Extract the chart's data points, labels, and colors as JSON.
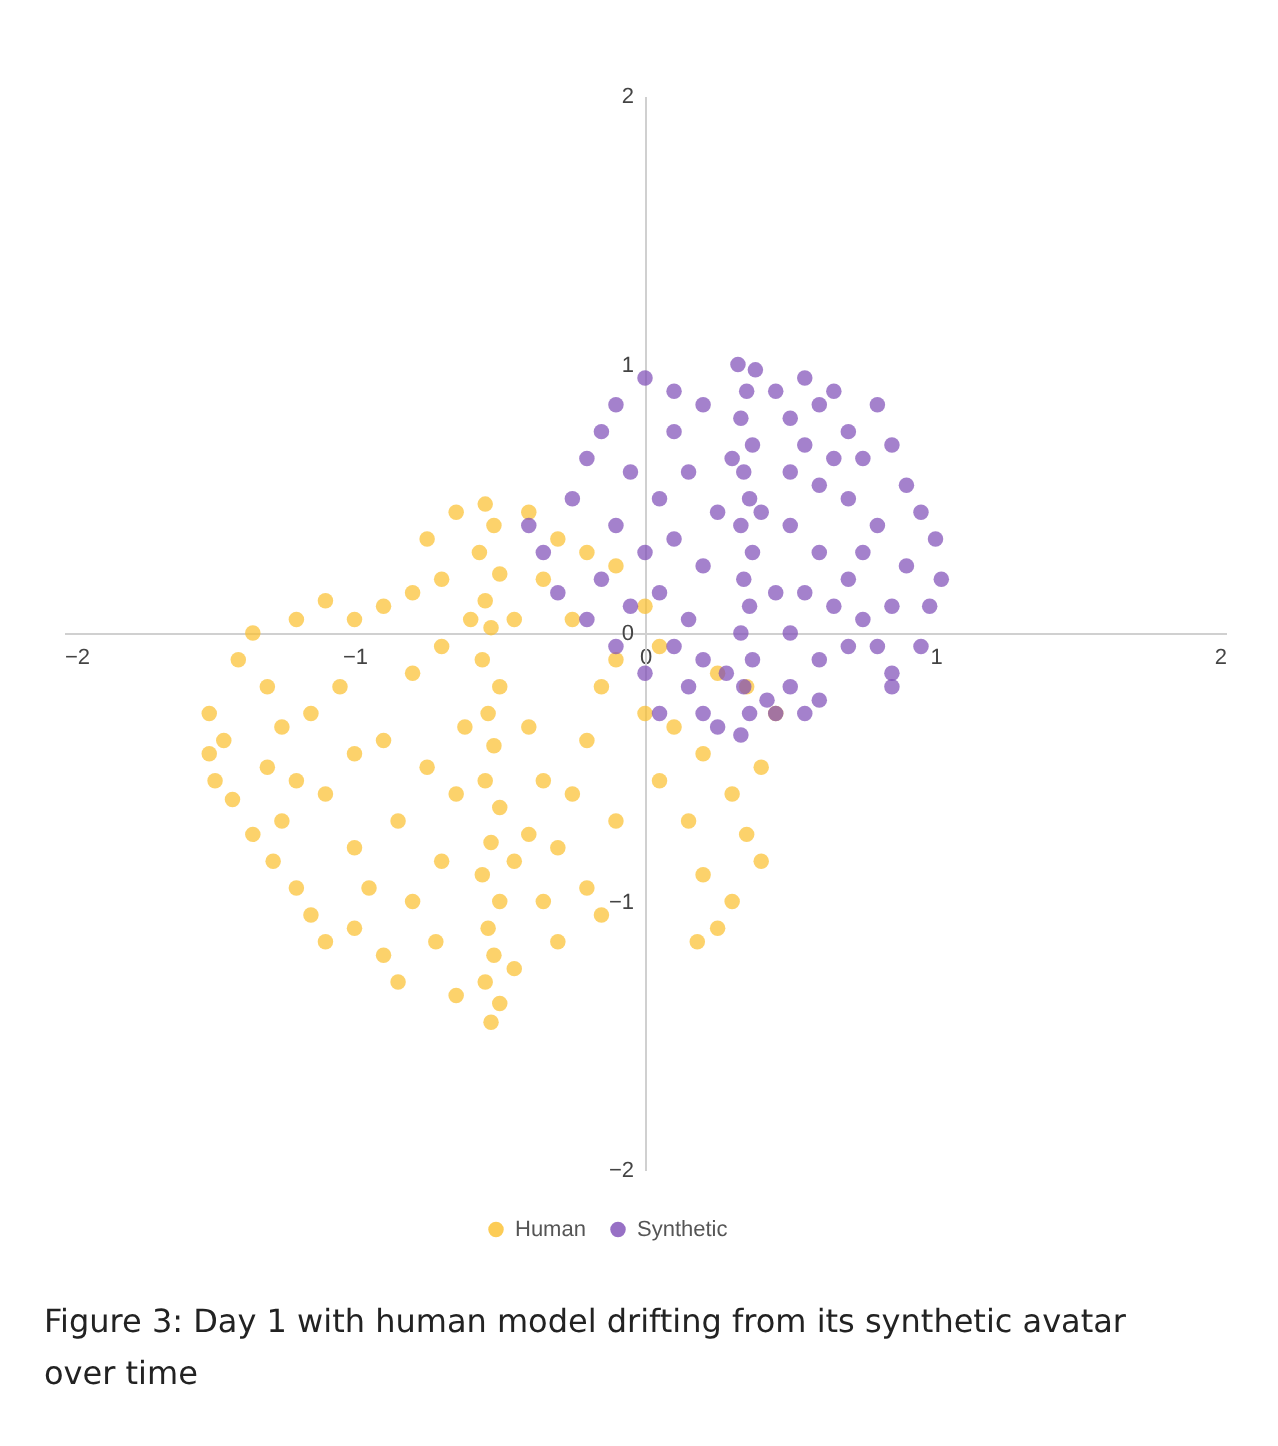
{
  "chart_data": {
    "type": "scatter",
    "xlim": [
      -2,
      2
    ],
    "ylim": [
      -2,
      2
    ],
    "xticks": [
      -2,
      -1,
      0,
      1,
      2
    ],
    "yticks": [
      -2,
      -1,
      0,
      1,
      2
    ],
    "grid": false,
    "legend": "bottom",
    "marker": "circle",
    "annotations": [
      "Figure 3: Day 1 with human model drifting from its synthetic avatar over time"
    ],
    "series": [
      {
        "name": "Human",
        "color": "#fbbf2c",
        "x": [
          -0.55,
          -0.52,
          -0.57,
          -0.5,
          -0.55,
          -0.53,
          -0.56,
          -0.5,
          -0.54,
          -0.52,
          -0.55,
          -0.5,
          -0.53,
          -0.56,
          -0.5,
          -0.54,
          -0.52,
          -0.55,
          -0.5,
          -0.53,
          -0.45,
          -0.45,
          -0.62,
          -0.6,
          -0.75,
          -0.65,
          -0.4,
          -0.3,
          -0.2,
          -0.1,
          0.0,
          -0.35,
          -0.8,
          -0.9,
          -1.0,
          -1.1,
          -1.2,
          -0.7,
          -0.45,
          -0.25,
          0.05,
          -1.5,
          -1.45,
          -1.48,
          -1.42,
          -1.5,
          -1.4,
          -1.35,
          -1.3,
          -1.25,
          -1.3,
          -1.2,
          -1.35,
          -1.28,
          -1.2,
          -1.15,
          -1.1,
          -1.25,
          -1.15,
          -1.05,
          -1.0,
          -1.1,
          -1.0,
          -0.95,
          -1.0,
          -0.9,
          -0.85,
          -0.8,
          -0.85,
          -0.9,
          -0.8,
          -0.75,
          -0.7,
          -0.72,
          -0.65,
          -0.7,
          -0.65,
          -0.4,
          -0.35,
          -0.4,
          -0.35,
          -0.3,
          -0.3,
          -0.25,
          -0.2,
          -0.15,
          -0.2,
          -0.15,
          -0.1,
          -0.1,
          0.0,
          0.05,
          0.1,
          0.2,
          0.15,
          0.2,
          0.3,
          0.25,
          0.3,
          0.35,
          0.4,
          0.45,
          0.4,
          0.35,
          0.25,
          0.18
        ],
        "values": [
          0.48,
          0.4,
          0.3,
          0.22,
          0.12,
          0.02,
          -0.1,
          -0.2,
          -0.3,
          -0.42,
          -0.55,
          -0.65,
          -0.78,
          -0.9,
          -1.0,
          -1.1,
          -1.2,
          -1.3,
          -1.38,
          -1.45,
          -0.85,
          -1.25,
          -0.35,
          0.05,
          0.35,
          0.45,
          0.45,
          0.35,
          0.3,
          0.25,
          0.1,
          0.2,
          0.15,
          0.1,
          0.05,
          0.12,
          0.05,
          0.2,
          0.05,
          0.05,
          -0.05,
          -0.3,
          -0.4,
          -0.55,
          -0.62,
          -0.45,
          -0.1,
          0.0,
          -0.2,
          -0.35,
          -0.5,
          -0.55,
          -0.75,
          -0.85,
          -0.95,
          -1.05,
          -1.15,
          -0.7,
          -0.3,
          -0.2,
          -0.45,
          -0.6,
          -0.8,
          -0.95,
          -1.1,
          -1.2,
          -1.3,
          -1.0,
          -0.7,
          -0.4,
          -0.15,
          -0.5,
          -0.85,
          -1.15,
          -1.35,
          -0.05,
          -0.6,
          -0.35,
          -0.55,
          -0.75,
          -1.0,
          -1.15,
          -0.8,
          -0.6,
          -0.4,
          -0.2,
          -0.95,
          -1.05,
          -0.7,
          -0.1,
          -0.3,
          -0.55,
          -0.35,
          -0.45,
          -0.7,
          -0.9,
          -1.0,
          -1.1,
          -0.6,
          -0.75,
          -0.5,
          -0.3,
          -0.85,
          -0.2,
          -0.15,
          -1.15
        ]
      },
      {
        "name": "Synthetic",
        "color": "#7d4cb6",
        "x": [
          0.32,
          0.38,
          0.35,
          0.33,
          0.37,
          0.34,
          0.36,
          0.33,
          0.37,
          0.34,
          0.36,
          0.33,
          0.37,
          0.34,
          0.36,
          0.33,
          0.28,
          0.42,
          0.3,
          0.4,
          -0.4,
          -0.35,
          -0.3,
          -0.2,
          -0.25,
          -0.2,
          -0.15,
          -0.1,
          0.0,
          -0.05,
          -0.1,
          -0.15,
          -0.05,
          0.0,
          0.05,
          0.1,
          0.1,
          0.15,
          0.1,
          0.05,
          0.15,
          0.2,
          0.2,
          0.25,
          0.1,
          0.15,
          0.2,
          0.25,
          0.2,
          -0.1,
          0.0,
          0.05,
          0.45,
          0.5,
          0.55,
          0.6,
          0.65,
          0.7,
          0.75,
          0.8,
          0.85,
          0.9,
          0.95,
          1.0,
          1.02,
          0.98,
          0.95,
          0.85,
          0.8,
          0.9,
          0.8,
          0.7,
          0.6,
          0.5,
          0.5,
          0.6,
          0.7,
          0.75,
          0.65,
          0.55,
          0.5,
          0.6,
          0.7,
          0.5,
          0.6,
          0.45,
          0.85,
          0.55,
          0.45,
          0.75,
          0.85,
          0.65,
          0.55
        ],
        "values": [
          1.0,
          0.98,
          0.9,
          0.8,
          0.7,
          0.6,
          0.5,
          0.4,
          0.3,
          0.2,
          0.1,
          0.0,
          -0.1,
          -0.2,
          -0.3,
          -0.38,
          -0.15,
          -0.25,
          0.65,
          0.45,
          0.4,
          0.3,
          0.15,
          0.05,
          0.5,
          0.65,
          0.75,
          0.85,
          0.95,
          0.6,
          0.4,
          0.2,
          0.1,
          0.3,
          0.5,
          0.75,
          0.9,
          0.6,
          0.35,
          0.15,
          0.05,
          0.25,
          0.85,
          0.45,
          -0.05,
          -0.2,
          -0.3,
          -0.35,
          -0.1,
          -0.05,
          -0.15,
          -0.3,
          0.9,
          0.8,
          0.7,
          0.85,
          0.9,
          0.75,
          0.65,
          0.85,
          0.7,
          0.55,
          0.45,
          0.35,
          0.2,
          0.1,
          -0.05,
          -0.15,
          -0.05,
          0.25,
          0.4,
          0.5,
          0.55,
          0.6,
          0.4,
          0.3,
          0.2,
          0.05,
          0.1,
          0.15,
          0.0,
          -0.1,
          -0.05,
          -0.2,
          -0.25,
          -0.3,
          -0.2,
          -0.3,
          0.15,
          0.3,
          0.1,
          0.65,
          0.95
        ]
      }
    ]
  }
}
